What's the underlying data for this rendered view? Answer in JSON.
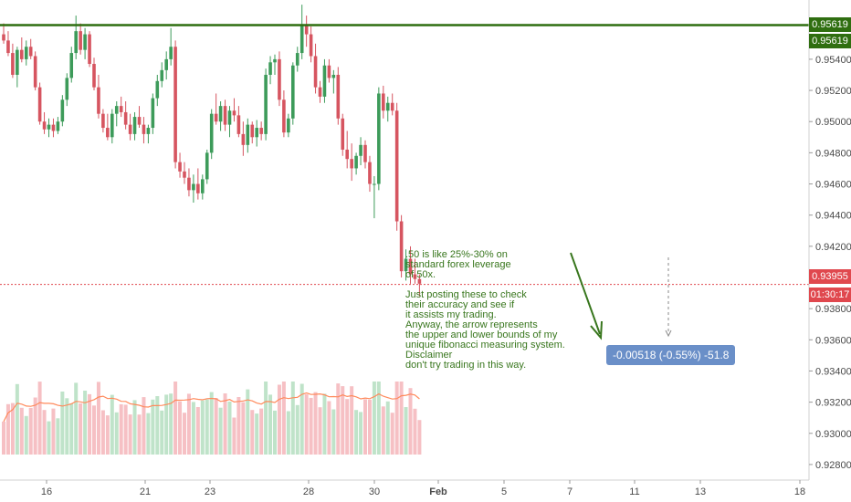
{
  "chart_data": {
    "type": "candlestick",
    "y_axis_ticks": [
      "0.95400",
      "0.95200",
      "0.95000",
      "0.94800",
      "0.94600",
      "0.94400",
      "0.94200",
      "0.93800",
      "0.93600",
      "0.93400",
      "0.93200",
      "0.93000",
      "0.92800"
    ],
    "x_axis_ticks": [
      "16",
      "21",
      "23",
      "28",
      "30",
      "Feb",
      "5",
      "7",
      "11",
      "13",
      "18"
    ],
    "ylim": [
      0.927,
      0.9578
    ],
    "resistance_level": {
      "value": "0.95619",
      "color": "#2f6e10"
    },
    "resistance_labels": [
      "0.95619",
      "0.95619"
    ],
    "last_price": {
      "value": "0.93955",
      "color": "#e0484e"
    },
    "countdown": "01:30:17",
    "up_color": "#3d9b5a",
    "down_color": "#d65560",
    "candles": [
      [
        0.9556,
        0.9563,
        0.955,
        0.9552
      ],
      [
        0.9552,
        0.9558,
        0.9542,
        0.9544
      ],
      [
        0.9544,
        0.955,
        0.9528,
        0.953
      ],
      [
        0.953,
        0.9548,
        0.9522,
        0.9546
      ],
      [
        0.9546,
        0.9554,
        0.9538,
        0.954
      ],
      [
        0.954,
        0.9552,
        0.9536,
        0.9548
      ],
      [
        0.9548,
        0.9553,
        0.954,
        0.9542
      ],
      [
        0.9542,
        0.9545,
        0.952,
        0.9522
      ],
      [
        0.9522,
        0.9525,
        0.9498,
        0.95
      ],
      [
        0.95,
        0.9506,
        0.9492,
        0.9495
      ],
      [
        0.9495,
        0.9502,
        0.949,
        0.9498
      ],
      [
        0.9498,
        0.9502,
        0.949,
        0.9494
      ],
      [
        0.9494,
        0.9503,
        0.9492,
        0.95
      ],
      [
        0.95,
        0.9517,
        0.9497,
        0.9514
      ],
      [
        0.9514,
        0.9531,
        0.951,
        0.9528
      ],
      [
        0.9528,
        0.9548,
        0.9525,
        0.9544
      ],
      [
        0.9544,
        0.9568,
        0.954,
        0.9558
      ],
      [
        0.9558,
        0.9563,
        0.9543,
        0.9546
      ],
      [
        0.9546,
        0.956,
        0.954,
        0.9556
      ],
      [
        0.9556,
        0.9558,
        0.9535,
        0.9537
      ],
      [
        0.9537,
        0.9541,
        0.952,
        0.9522
      ],
      [
        0.9522,
        0.953,
        0.9502,
        0.9505
      ],
      [
        0.9505,
        0.9508,
        0.9493,
        0.9496
      ],
      [
        0.9496,
        0.9505,
        0.9488,
        0.949
      ],
      [
        0.949,
        0.9508,
        0.9486,
        0.9505
      ],
      [
        0.9505,
        0.9513,
        0.9497,
        0.951
      ],
      [
        0.951,
        0.9516,
        0.9503,
        0.9506
      ],
      [
        0.9506,
        0.9513,
        0.9495,
        0.9498
      ],
      [
        0.9498,
        0.9505,
        0.9488,
        0.9492
      ],
      [
        0.9492,
        0.9506,
        0.9488,
        0.9503
      ],
      [
        0.9503,
        0.951,
        0.9496,
        0.9498
      ],
      [
        0.9498,
        0.9503,
        0.9486,
        0.9492
      ],
      [
        0.9492,
        0.9498,
        0.9486,
        0.9496
      ],
      [
        0.9496,
        0.9518,
        0.9492,
        0.9515
      ],
      [
        0.9515,
        0.953,
        0.951,
        0.9526
      ],
      [
        0.9526,
        0.9538,
        0.9522,
        0.9533
      ],
      [
        0.9533,
        0.9545,
        0.9527,
        0.954
      ],
      [
        0.954,
        0.956,
        0.9536,
        0.9548
      ],
      [
        0.9548,
        0.9552,
        0.947,
        0.9474
      ],
      [
        0.9474,
        0.948,
        0.9464,
        0.9468
      ],
      [
        0.9468,
        0.9474,
        0.946,
        0.9464
      ],
      [
        0.9464,
        0.947,
        0.9452,
        0.9456
      ],
      [
        0.9456,
        0.9466,
        0.9448,
        0.946
      ],
      [
        0.946,
        0.947,
        0.945,
        0.9454
      ],
      [
        0.9454,
        0.9466,
        0.945,
        0.9463
      ],
      [
        0.9463,
        0.9482,
        0.946,
        0.948
      ],
      [
        0.948,
        0.9508,
        0.9476,
        0.9505
      ],
      [
        0.9505,
        0.9518,
        0.9498,
        0.95
      ],
      [
        0.95,
        0.9513,
        0.9494,
        0.951
      ],
      [
        0.951,
        0.9514,
        0.9494,
        0.9498
      ],
      [
        0.9498,
        0.951,
        0.949,
        0.9507
      ],
      [
        0.9507,
        0.9515,
        0.95,
        0.9504
      ],
      [
        0.9504,
        0.951,
        0.949,
        0.9492
      ],
      [
        0.9492,
        0.95,
        0.9478,
        0.9485
      ],
      [
        0.9485,
        0.9502,
        0.948,
        0.9498
      ],
      [
        0.9498,
        0.95,
        0.9486,
        0.949
      ],
      [
        0.949,
        0.9501,
        0.9484,
        0.9496
      ],
      [
        0.9496,
        0.95,
        0.9488,
        0.9492
      ],
      [
        0.9492,
        0.9534,
        0.9488,
        0.953
      ],
      [
        0.953,
        0.9542,
        0.9524,
        0.9538
      ],
      [
        0.9538,
        0.9543,
        0.953,
        0.954
      ],
      [
        0.954,
        0.9545,
        0.951,
        0.9514
      ],
      [
        0.9514,
        0.952,
        0.949,
        0.9493
      ],
      [
        0.9493,
        0.9505,
        0.949,
        0.9502
      ],
      [
        0.9502,
        0.9538,
        0.9498,
        0.9536
      ],
      [
        0.9536,
        0.9548,
        0.9532,
        0.9544
      ],
      [
        0.9544,
        0.9575,
        0.954,
        0.9562
      ],
      [
        0.9562,
        0.9568,
        0.9548,
        0.9556
      ],
      [
        0.9556,
        0.9561,
        0.9538,
        0.9542
      ],
      [
        0.9542,
        0.955,
        0.9518,
        0.9522
      ],
      [
        0.9522,
        0.9526,
        0.9512,
        0.9516
      ],
      [
        0.9516,
        0.954,
        0.9512,
        0.9536
      ],
      [
        0.9536,
        0.954,
        0.9525,
        0.9528
      ],
      [
        0.9528,
        0.9533,
        0.9518,
        0.953
      ],
      [
        0.953,
        0.9535,
        0.9498,
        0.9502
      ],
      [
        0.9502,
        0.9505,
        0.9478,
        0.9482
      ],
      [
        0.9482,
        0.9494,
        0.947,
        0.9476
      ],
      [
        0.9476,
        0.9486,
        0.9462,
        0.947
      ],
      [
        0.947,
        0.948,
        0.9466,
        0.9478
      ],
      [
        0.9478,
        0.949,
        0.9472,
        0.9485
      ],
      [
        0.9485,
        0.9488,
        0.947,
        0.9474
      ],
      [
        0.9474,
        0.9478,
        0.9455,
        0.946
      ],
      [
        0.946,
        0.9465,
        0.9438,
        0.946
      ],
      [
        0.946,
        0.9522,
        0.9456,
        0.9518
      ],
      [
        0.9518,
        0.9523,
        0.9502,
        0.9507
      ],
      [
        0.9507,
        0.9516,
        0.95,
        0.9512
      ],
      [
        0.9512,
        0.9518,
        0.9504,
        0.9507
      ],
      [
        0.9507,
        0.9512,
        0.943,
        0.9436
      ],
      [
        0.9436,
        0.944,
        0.94,
        0.9404
      ],
      [
        0.9404,
        0.9418,
        0.9398,
        0.9412
      ],
      [
        0.9412,
        0.942,
        0.9396,
        0.9402
      ],
      [
        0.9402,
        0.9412,
        0.9396,
        0.9399
      ],
      [
        0.9399,
        0.9402,
        0.9388,
        0.9396
      ]
    ]
  },
  "annotation": {
    "note": ".50 is like 25%-30% on\nstandard forex leverage\nof 50x.\n\nJust posting these to check\ntheir accuracy and see if\nit assists my trading.\nAnyway, the arrow represents\nthe upper and lower bounds of my\nunique fibonacci measuring system.\nDisclaimer\ndon't try trading in this way.",
    "measure_label": "-0.00518 (-0.55%) -51.8",
    "arrow_color": "#38761d"
  }
}
